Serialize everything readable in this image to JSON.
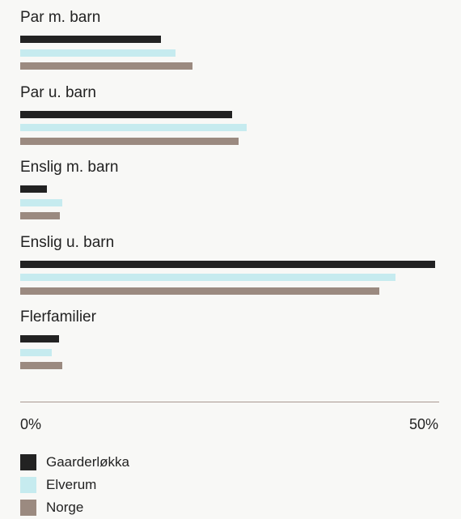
{
  "chart_data": {
    "type": "bar",
    "orientation": "horizontal",
    "categories": [
      "Par m. barn",
      "Par u. barn",
      "Enslig m. barn",
      "Enslig u. barn",
      "Flerfamilier"
    ],
    "series": [
      {
        "name": "Gaarderløkka",
        "color": "#222222",
        "values": [
          17.0,
          25.5,
          3.2,
          50.0,
          4.7
        ]
      },
      {
        "name": "Elverum",
        "color": "#c6ebef",
        "values": [
          18.7,
          27.3,
          5.1,
          45.2,
          3.8
        ]
      },
      {
        "name": "Norge",
        "color": "#9b8a80",
        "values": [
          20.8,
          26.3,
          4.8,
          43.3,
          5.1
        ]
      }
    ],
    "xlim": [
      0,
      50
    ],
    "ticks": [
      {
        "value": 0,
        "label": "0%"
      },
      {
        "value": 50,
        "label": "50%"
      }
    ],
    "grid": false,
    "legend_position": "bottom-left"
  }
}
